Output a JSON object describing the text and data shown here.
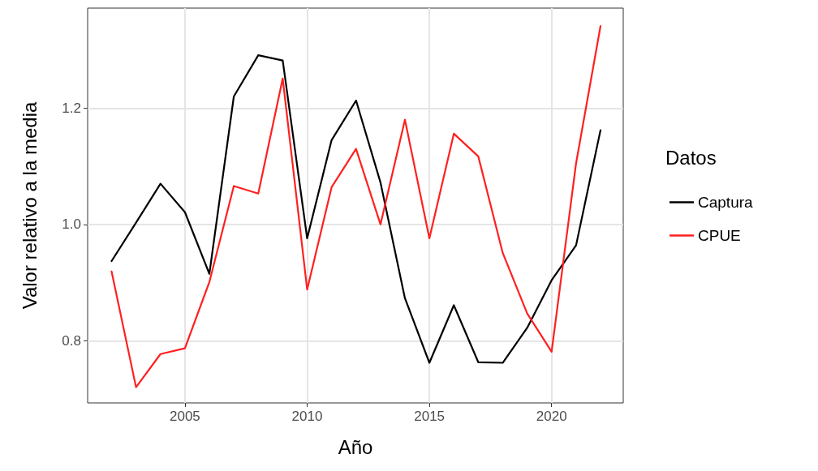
{
  "chart_data": {
    "type": "line",
    "xlabel": "Año",
    "ylabel": "Valor relativo a la media",
    "legend_title": "Datos",
    "x": [
      2002,
      2003,
      2004,
      2005,
      2006,
      2007,
      2008,
      2009,
      2010,
      2011,
      2012,
      2013,
      2014,
      2015,
      2016,
      2017,
      2018,
      2019,
      2020,
      2021,
      2022
    ],
    "series": [
      {
        "name": "Captura",
        "color": "#000000",
        "values": [
          0.937,
          1.003,
          1.07,
          1.021,
          0.915,
          1.22,
          1.291,
          1.282,
          0.976,
          1.145,
          1.213,
          1.072,
          0.873,
          0.762,
          0.861,
          0.763,
          0.762,
          0.822,
          0.904,
          0.964,
          1.162
        ]
      },
      {
        "name": "CPUE",
        "color": "#ff2020",
        "values": [
          0.919,
          0.72,
          0.777,
          0.787,
          0.901,
          1.066,
          1.053,
          1.251,
          0.888,
          1.064,
          1.13,
          1.0,
          1.18,
          0.976,
          1.156,
          1.117,
          0.951,
          0.847,
          0.781,
          1.105,
          1.341
        ]
      }
    ],
    "xlim": [
      2001.02,
      2022.93
    ],
    "ylim": [
      0.693,
      1.372
    ],
    "xticks": [
      2005,
      2010,
      2015,
      2020
    ],
    "yticks": [
      {
        "value": 0.8,
        "label": "0.8"
      },
      {
        "value": 1,
        "label": "1.0"
      },
      {
        "value": 1.2,
        "label": "1.2"
      }
    ],
    "grid": true,
    "legend": "right",
    "marker": "none",
    "line_style": "solid"
  }
}
